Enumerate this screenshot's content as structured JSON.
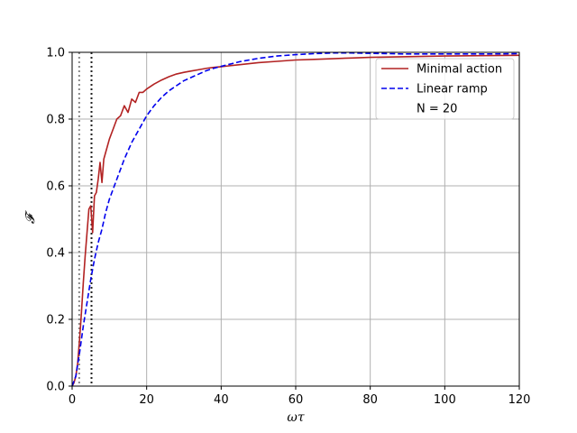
{
  "chart_data": {
    "type": "line",
    "xlabel": "ωτ",
    "ylabel": "𝓕",
    "xlim": [
      0,
      120
    ],
    "ylim": [
      0,
      1
    ],
    "xticks": [
      0,
      20,
      40,
      60,
      80,
      100,
      120
    ],
    "yticks": [
      0.0,
      0.2,
      0.4,
      0.6,
      0.8,
      1.0
    ],
    "ytick_labels": [
      "0.0",
      "0.2",
      "0.4",
      "0.6",
      "0.8",
      "1.0"
    ],
    "grid": true,
    "legend_position": "top-right",
    "legend_note": "N = 20",
    "vertical_lines": [
      {
        "x": 1.9,
        "color": "#888888",
        "style": "dotted"
      },
      {
        "x": 5.2,
        "color": "#222222",
        "style": "dotted"
      }
    ],
    "series": [
      {
        "name": "Minimal action",
        "color": "#b22222",
        "style": "solid",
        "x": [
          0,
          0.5,
          1,
          1.5,
          2,
          2.5,
          3,
          3.5,
          4,
          4.5,
          5,
          5.5,
          6,
          6.5,
          7,
          7.5,
          8,
          8.5,
          9,
          10,
          11,
          12,
          13,
          14,
          15,
          16,
          17,
          18,
          19,
          20,
          22,
          24,
          26,
          28,
          30,
          32,
          34,
          36,
          38,
          40,
          45,
          50,
          55,
          60,
          65,
          70,
          75,
          80,
          90,
          100,
          110,
          120
        ],
        "y": [
          0.0,
          0.01,
          0.03,
          0.07,
          0.14,
          0.22,
          0.31,
          0.39,
          0.46,
          0.53,
          0.54,
          0.46,
          0.57,
          0.58,
          0.62,
          0.67,
          0.61,
          0.68,
          0.7,
          0.74,
          0.77,
          0.8,
          0.81,
          0.84,
          0.82,
          0.86,
          0.85,
          0.88,
          0.88,
          0.89,
          0.905,
          0.917,
          0.927,
          0.935,
          0.94,
          0.944,
          0.948,
          0.952,
          0.955,
          0.957,
          0.963,
          0.969,
          0.973,
          0.977,
          0.979,
          0.981,
          0.983,
          0.985,
          0.987,
          0.989,
          0.99,
          0.991
        ]
      },
      {
        "name": "Linear ramp",
        "color": "#0000ee",
        "style": "dashed",
        "x": [
          0,
          1,
          2,
          3,
          4,
          5,
          6,
          7,
          8,
          9,
          10,
          12,
          14,
          16,
          18,
          20,
          22,
          24,
          26,
          28,
          30,
          32,
          34,
          36,
          38,
          40,
          45,
          50,
          55,
          60,
          65,
          70,
          75,
          80,
          90,
          100,
          110,
          120
        ],
        "y": [
          0.0,
          0.03,
          0.1,
          0.18,
          0.25,
          0.32,
          0.38,
          0.43,
          0.47,
          0.52,
          0.56,
          0.62,
          0.68,
          0.73,
          0.77,
          0.81,
          0.84,
          0.865,
          0.885,
          0.9,
          0.915,
          0.925,
          0.935,
          0.945,
          0.952,
          0.958,
          0.972,
          0.982,
          0.989,
          0.993,
          0.996,
          0.998,
          0.998,
          0.997,
          0.995,
          0.995,
          0.995,
          0.996
        ]
      }
    ]
  }
}
